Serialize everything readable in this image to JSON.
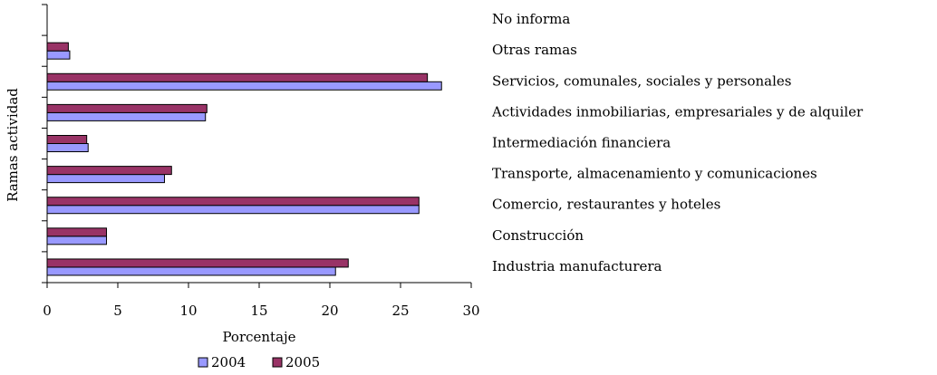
{
  "chart_data": {
    "type": "bar",
    "orientation": "horizontal",
    "y_label": "Ramas actividad",
    "x_label": "Porcentaje",
    "categories": [
      "Industria manufacturera",
      "Construcción",
      "Comercio, restaurantes y hoteles",
      "Transporte, almacenamiento y comunicaciones",
      "Intermediación financiera",
      "Actividades inmobiliarias, empresariales y de alquiler",
      "Servicios, comunales, sociales y personales",
      "Otras ramas",
      "No informa"
    ],
    "series": [
      {
        "name": "2004",
        "color": "#9999ff",
        "values": [
          20.4,
          4.2,
          26.3,
          8.3,
          2.9,
          11.2,
          27.9,
          1.6,
          0
        ]
      },
      {
        "name": "2005",
        "color": "#993366",
        "values": [
          21.3,
          4.2,
          26.3,
          8.8,
          2.8,
          11.3,
          26.9,
          1.5,
          0
        ]
      }
    ],
    "xlim": [
      0,
      30
    ],
    "xticks": [
      0,
      5,
      10,
      15,
      20,
      25,
      30
    ],
    "legend": "bottom"
  }
}
